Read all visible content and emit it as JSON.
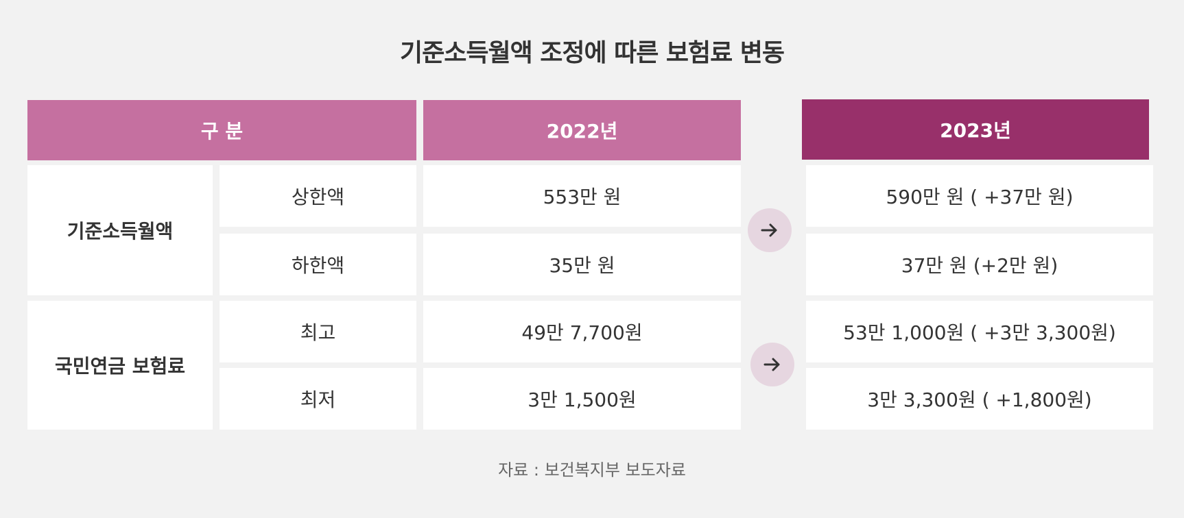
{
  "title": "기준소득월액 조정에 따른 보험료 변동",
  "header": {
    "category": "구 분",
    "year_prev": "2022년",
    "year_next": "2023년"
  },
  "groups": [
    {
      "label": "기준소득월액",
      "rows": [
        {
          "item": "상한액",
          "prev": "553만 원",
          "next": "590만 원 ( +37만 원)"
        },
        {
          "item": "하한액",
          "prev": "35만 원",
          "next": "37만 원 (+2만 원)"
        }
      ]
    },
    {
      "label": "국민연금 보험료",
      "rows": [
        {
          "item": "최고",
          "prev": "49만  7,700원",
          "next": "53만 1,000원 ( +3만 3,300원)"
        },
        {
          "item": "최저",
          "prev": "3만 1,500원",
          "next": "3만 3,300원 ( +1,800원)"
        }
      ]
    }
  ],
  "icons": {
    "arrow": "arrow-right-icon"
  },
  "colors": {
    "header_2022": "#c570a0",
    "header_2023": "#98306a",
    "arrow_circle": "#e6d6e0",
    "background": "#f2f2f2"
  },
  "source": "자료 : 보건복지부 보도자료"
}
